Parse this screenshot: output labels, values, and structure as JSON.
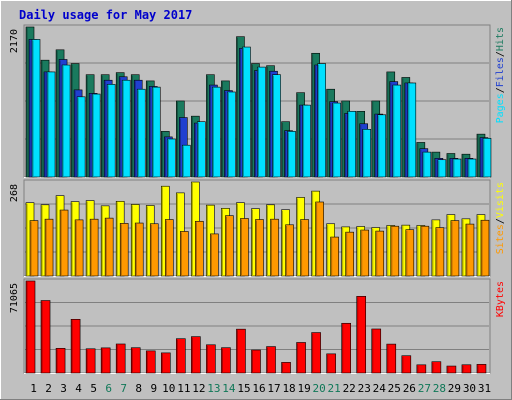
{
  "chart_data": {
    "type": "bar",
    "title": "Daily usage for May 2017",
    "categories": [
      "1",
      "2",
      "3",
      "4",
      "5",
      "6",
      "7",
      "8",
      "9",
      "10",
      "11",
      "12",
      "13",
      "14",
      "15",
      "16",
      "17",
      "18",
      "19",
      "20",
      "21",
      "22",
      "23",
      "24",
      "25",
      "26",
      "27",
      "28",
      "29",
      "30",
      "31"
    ],
    "weekend_days": [
      "6",
      "7",
      "13",
      "14",
      "20",
      "21",
      "27",
      "28"
    ],
    "panels": [
      {
        "id": "hits-files-pages",
        "ymax_label": "2170",
        "ylim": [
          0,
          2170
        ],
        "legend": [
          "Pages",
          "/",
          "Files",
          "/",
          "Hits"
        ],
        "series": [
          {
            "name": "Hits",
            "color": "#1a7a5e",
            "values": [
              2170,
              1690,
              1840,
              1640,
              1480,
              1480,
              1510,
              1480,
              1390,
              660,
              1100,
              880,
              1480,
              1390,
              2030,
              1640,
              1610,
              800,
              1220,
              1790,
              1270,
              1100,
              950,
              1100,
              1520,
              1440,
              500,
              360,
              340,
              330,
              620
            ]
          },
          {
            "name": "Files",
            "color": "#2040d0",
            "values": [
              1990,
              1520,
              1700,
              1260,
              1210,
              1400,
              1450,
              1400,
              1310,
              580,
              860,
              780,
              1330,
              1250,
              1860,
              1540,
              1530,
              670,
              1040,
              1620,
              1090,
              920,
              770,
              910,
              1380,
              1360,
              410,
              270,
              270,
              270,
              570
            ]
          },
          {
            "name": "Pages",
            "color": "#00e0ff",
            "values": [
              1990,
              1520,
              1620,
              1160,
              1200,
              1340,
              1400,
              1270,
              1300,
              550,
              460,
              800,
              1300,
              1230,
              1880,
              1590,
              1480,
              660,
              1040,
              1640,
              1070,
              950,
              690,
              900,
              1330,
              1360,
              360,
              250,
              260,
              260,
              560
            ]
          }
        ]
      },
      {
        "id": "visits-sites",
        "ymax_label": "268",
        "ylim": [
          0,
          268
        ],
        "legend": [
          "Sites",
          "/",
          "Visits"
        ],
        "series": [
          {
            "name": "Visits",
            "color": "#ffff00",
            "values": [
              209,
              203,
              229,
              212,
              215,
              200,
              213,
              204,
              201,
              256,
              237,
              268,
              202,
              193,
              209,
              192,
              203,
              189,
              224,
              242,
              149,
              140,
              141,
              138,
              144,
              145,
              144,
              160,
              175,
              163,
              175
            ]
          },
          {
            "name": "Sites",
            "color": "#ff9900",
            "values": [
              158,
              162,
              188,
              160,
              162,
              165,
              150,
              151,
              149,
              161,
              127,
              156,
              120,
              172,
              164,
              161,
              162,
              146,
              161,
              211,
              111,
              125,
              131,
              128,
              142,
              132,
              142,
              138,
              158,
              148,
              159
            ]
          }
        ]
      },
      {
        "id": "kbytes",
        "ymax_label": "71065",
        "ylim": [
          0,
          71065
        ],
        "legend": [
          "KBytes"
        ],
        "series": [
          {
            "name": "KBytes",
            "color": "#ff0000",
            "values": [
              71065,
              55980,
              19060,
              41480,
              18720,
              19410,
              22410,
              19530,
              17080,
              15540,
              26500,
              28100,
              21800,
              19540,
              33860,
              17760,
              20420,
              8200,
              23580,
              31240,
              14790,
              38410,
              59240,
              34000,
              22320,
              13350,
              6320,
              8720,
              5370,
              6360,
              6680
            ]
          }
        ]
      }
    ],
    "colors": {
      "background": "#c0c0c0",
      "plot_background": "#c0c0c0",
      "title": "#0000cc",
      "weekday_label": "#000000",
      "weekend_label": "#107858",
      "pages": "#00e0ff",
      "files": "#2040d0",
      "hits": "#1a7a5e",
      "sites": "#ff9900",
      "visits": "#ffff00",
      "kbytes": "#ff0000"
    }
  }
}
